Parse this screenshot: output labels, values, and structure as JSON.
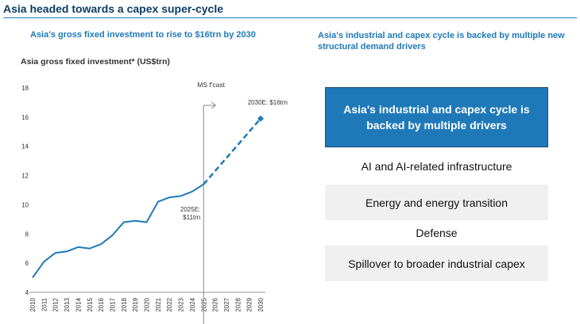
{
  "page": {
    "title": "Asia headed towards a capex super-cycle",
    "subtitle_left": "Asia's gross fixed investment to rise to $16trn by 2030",
    "subtitle_right": "Asia's industrial and capex cycle is backed by multiple new structural demand drivers"
  },
  "chart_data": {
    "type": "line",
    "title": "Asia gross fixed investment* (US$trn)",
    "xlabel": "",
    "ylabel": "",
    "x": [
      "2010",
      "2011",
      "2012",
      "2013",
      "2014",
      "2015",
      "2016",
      "2017",
      "2018",
      "2019",
      "2020",
      "2021",
      "2022",
      "2023",
      "2024",
      "2025",
      "2026",
      "2027",
      "2028",
      "2029",
      "2030"
    ],
    "ylim": [
      4,
      18
    ],
    "yticks": [
      4,
      6,
      8,
      10,
      12,
      14,
      16,
      18
    ],
    "grid": false,
    "series": [
      {
        "style": "solid",
        "x": [
          "2010",
          "2011",
          "2012",
          "2013",
          "2014",
          "2015",
          "2016",
          "2017",
          "2018",
          "2019",
          "2020",
          "2021",
          "2022",
          "2023",
          "2024",
          "2025"
        ],
        "values": [
          5.0,
          6.1,
          6.7,
          6.8,
          7.1,
          7.0,
          7.3,
          7.9,
          8.8,
          8.9,
          8.8,
          10.2,
          10.5,
          10.6,
          10.9,
          11.4
        ]
      },
      {
        "style": "dashed",
        "x": [
          "2025",
          "2026",
          "2027",
          "2028",
          "2029",
          "2030"
        ],
        "values": [
          11.4,
          12.3,
          13.2,
          14.1,
          15.0,
          15.9
        ]
      }
    ],
    "annotations": {
      "forecast_label": "MS f'cast",
      "forecast_start": "2025",
      "label_2025": [
        "2025E:",
        "$11trn"
      ],
      "label_2030": "2030E: $16trn"
    },
    "colors": {
      "line": "#1f79b8",
      "axis": "#999999",
      "text": "#333333"
    }
  },
  "drivers": {
    "header": "Asia's industrial and capex cycle is backed by multiple drivers",
    "items": [
      "AI and AI-related infrastructure",
      "Energy and energy transition",
      "Defense",
      "Spillover to broader industrial capex"
    ]
  }
}
